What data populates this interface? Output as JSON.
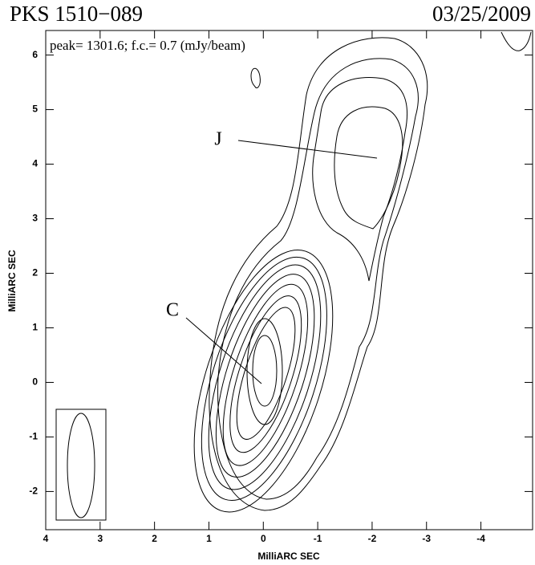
{
  "chart_data": {
    "type": "contour",
    "title": "PKS 1510−089",
    "date": "03/25/2009",
    "subtitle": "peak= 1301.6; f.c.= 0.7 (mJy/beam)",
    "x_label": "MilliARC SEC",
    "y_label": "MilliARC SEC",
    "annotations": [
      "J",
      "C"
    ],
    "xlim": [
      4,
      -4.95
    ],
    "ylim": [
      -2.7,
      6.45
    ],
    "xticks": [
      4,
      3,
      2,
      1,
      0,
      -1,
      -2,
      -3,
      -4
    ],
    "yticks": [
      -2,
      -1,
      0,
      1,
      2,
      3,
      4,
      5,
      6
    ]
  }
}
